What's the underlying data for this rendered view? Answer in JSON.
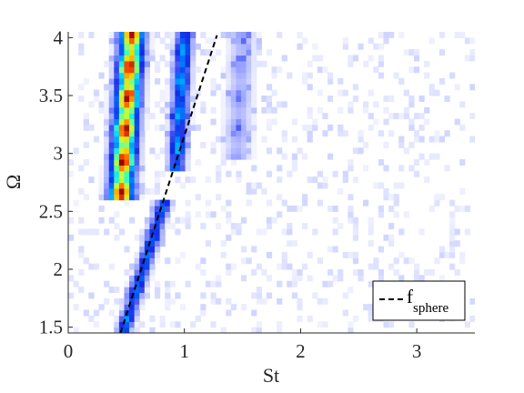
{
  "chart_data": {
    "type": "heatmap",
    "xlabel": "St",
    "ylabel": "Ω",
    "xlim": [
      0,
      3.5
    ],
    "ylim": [
      1.45,
      4.05
    ],
    "x_ticks": [
      {
        "value": 0,
        "label": "0"
      },
      {
        "value": 1,
        "label": "1"
      },
      {
        "value": 2,
        "label": "2"
      },
      {
        "value": 3,
        "label": "3"
      }
    ],
    "y_ticks": [
      {
        "value": 1.5,
        "label": "1.5"
      },
      {
        "value": 2,
        "label": "2"
      },
      {
        "value": 2.5,
        "label": "2.5"
      },
      {
        "value": 3,
        "label": "3"
      },
      {
        "value": 3.5,
        "label": "3.5"
      },
      {
        "value": 4,
        "label": "4"
      }
    ],
    "colormap": "jet",
    "grid": false,
    "legend": {
      "placement": "bottom-right",
      "entries": [
        {
          "label": "f",
          "subscript": "sphere",
          "style": "dashed",
          "color": "#000000"
        }
      ]
    },
    "reference_line": {
      "name": "f_sphere",
      "style": "dashed",
      "color": "#000000",
      "points": [
        [
          0.45,
          1.45
        ],
        [
          1.28,
          4.02
        ]
      ]
    },
    "spectral_bands": [
      {
        "omega_range": [
          2.6,
          4.05
        ],
        "st_center_at_omega_low": 0.45,
        "st_center_at_omega_high": 0.55,
        "width": 0.07,
        "peak": 1.0
      },
      {
        "omega_range": [
          2.85,
          4.05
        ],
        "st_center_at_omega_low": 0.93,
        "st_center_at_omega_high": 1.0,
        "width": 0.05,
        "peak": 0.48
      },
      {
        "omega_range": [
          2.95,
          4.05
        ],
        "st_center_at_omega_low": 1.45,
        "st_center_at_omega_high": 1.5,
        "width": 0.08,
        "peak": 0.16
      },
      {
        "omega_range": [
          1.45,
          2.6
        ],
        "st_center_at_omega_low": 0.47,
        "st_center_at_omega_high": 0.83,
        "width": 0.045,
        "peak": 0.42
      }
    ]
  }
}
